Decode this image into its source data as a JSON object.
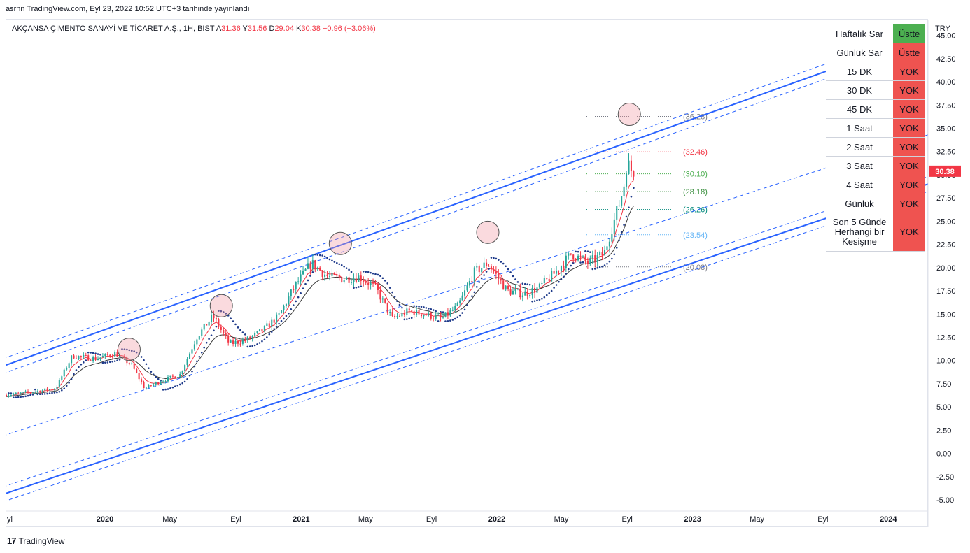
{
  "header": {
    "published": "asrnn TradingView.com, Eyl 23, 2022 10:52 UTC+3 tarihinde yayınlandı"
  },
  "legend": {
    "symbol": "AKÇANSA ÇİMENTO SANAYİ VE TİCARET A.Ş., 1H, BIST",
    "open_label": "A",
    "open": "31.36",
    "high_label": "Y",
    "high": "31.56",
    "low_label": "D",
    "low": "29.04",
    "close_label": "K",
    "close": "30.38",
    "change": "−0.96 (−3.06%)"
  },
  "footer": {
    "logo": "17",
    "brand": "TradingView"
  },
  "colors": {
    "up": "#26a69a",
    "down": "#f23645",
    "channel": "#2962ff",
    "ema_fast": "#f23645",
    "ema_slow": "#3a3a3a",
    "sar": "#1e3a8a",
    "green_cell": "#4caf50",
    "red_cell": "#ef5350"
  },
  "status_table": [
    {
      "label": "Haftalık Sar",
      "value": "Üstte",
      "state": "green"
    },
    {
      "label": "Günlük Sar",
      "value": "Üstte",
      "state": "red"
    },
    {
      "label": "15 DK",
      "value": "YOK",
      "state": "red"
    },
    {
      "label": "30 DK",
      "value": "YOK",
      "state": "red"
    },
    {
      "label": "45 DK",
      "value": "YOK",
      "state": "red"
    },
    {
      "label": "1 Saat",
      "value": "YOK",
      "state": "red"
    },
    {
      "label": "2 Saat",
      "value": "YOK",
      "state": "red"
    },
    {
      "label": "3 Saat",
      "value": "YOK",
      "state": "red"
    },
    {
      "label": "4 Saat",
      "value": "YOK",
      "state": "red"
    },
    {
      "label": "Günlük",
      "value": "YOK",
      "state": "red"
    },
    {
      "label": "Son 5 Günde Herhangi bir Kesişme",
      "value": "YOK",
      "state": "red"
    }
  ],
  "chart_data": {
    "type": "candlestick",
    "currency": "TRY",
    "y_axis": {
      "range": [
        -6.2,
        46.7
      ],
      "ticks": [
        "45.00",
        "42.50",
        "40.00",
        "37.50",
        "35.00",
        "32.50",
        "30.00",
        "27.50",
        "25.00",
        "22.50",
        "20.00",
        "17.50",
        "15.00",
        "12.50",
        "10.00",
        "7.50",
        "5.00",
        "2.50",
        "0.00",
        "-2.50",
        "-5.00"
      ]
    },
    "x_axis": {
      "range": [
        "2019-07-01",
        "2024-03-15"
      ],
      "ticks": [
        {
          "label": "yl",
          "date": "2019-07-01"
        },
        {
          "label": "2020",
          "date": "2020-01-01"
        },
        {
          "label": "May",
          "date": "2020-05-01"
        },
        {
          "label": "Eyl",
          "date": "2020-09-01"
        },
        {
          "label": "2021",
          "date": "2021-01-01"
        },
        {
          "label": "May",
          "date": "2021-05-01"
        },
        {
          "label": "Eyl",
          "date": "2021-09-01"
        },
        {
          "label": "2022",
          "date": "2022-01-01"
        },
        {
          "label": "May",
          "date": "2022-05-01"
        },
        {
          "label": "Eyl",
          "date": "2022-09-01"
        },
        {
          "label": "2023",
          "date": "2023-01-01"
        },
        {
          "label": "May",
          "date": "2023-05-01"
        },
        {
          "label": "Eyl",
          "date": "2023-09-01"
        },
        {
          "label": "2024",
          "date": "2024-01-01"
        }
      ]
    },
    "last_price": "30.38",
    "price_levels": [
      {
        "label": "(36.28)",
        "value": 36.28,
        "color": "#787b86"
      },
      {
        "label": "(32.46)",
        "value": 32.46,
        "color": "#f23645"
      },
      {
        "label": "(30.10)",
        "value": 30.1,
        "color": "#4caf50"
      },
      {
        "label": "(28.18)",
        "value": 28.18,
        "color": "#388e3c"
      },
      {
        "label": "(26.26)",
        "value": 26.26,
        "color": "#00897b"
      },
      {
        "label": "(23.54)",
        "value": 23.54,
        "color": "#64b5f6"
      },
      {
        "label": "(20.08)",
        "value": 20.08,
        "color": "#787b86"
      }
    ],
    "channel": {
      "upper": [
        [
          "2019-06-25",
          9.4
        ],
        [
          "2023-12-01",
          42.9
        ]
      ],
      "middle": [
        [
          "2019-06-25",
          1.9
        ],
        [
          "2024-03-15",
          34.3
        ]
      ],
      "lower": [
        [
          "2019-06-25",
          -4.4
        ],
        [
          "2024-03-15",
          29.0
        ]
      ],
      "offset": 0.8
    },
    "circled_peaks": [
      {
        "date": "2020-02-15",
        "price": 11.2
      },
      {
        "date": "2020-08-05",
        "price": 15.9
      },
      {
        "date": "2021-03-15",
        "price": 22.6
      },
      {
        "date": "2021-12-15",
        "price": 23.8
      },
      {
        "date": "2022-09-05",
        "price": 36.5
      }
    ],
    "price_path": [
      [
        "2019-07-01",
        6.3
      ],
      [
        "2019-08-15",
        6.6
      ],
      [
        "2019-10-01",
        7.0
      ],
      [
        "2019-11-01",
        10.5
      ],
      [
        "2019-12-15",
        10.2
      ],
      [
        "2020-01-20",
        10.8
      ],
      [
        "2020-02-20",
        9.5
      ],
      [
        "2020-03-15",
        7.0
      ],
      [
        "2020-04-15",
        7.8
      ],
      [
        "2020-05-20",
        8.5
      ],
      [
        "2020-06-20",
        12.5
      ],
      [
        "2020-07-20",
        14.8
      ],
      [
        "2020-08-20",
        11.8
      ],
      [
        "2020-09-20",
        12.2
      ],
      [
        "2020-10-20",
        13.2
      ],
      [
        "2020-11-20",
        14.8
      ],
      [
        "2020-12-20",
        18.0
      ],
      [
        "2021-01-20",
        20.5
      ],
      [
        "2021-02-20",
        19.0
      ],
      [
        "2021-03-20",
        18.8
      ],
      [
        "2021-04-20",
        19.0
      ],
      [
        "2021-05-20",
        17.8
      ],
      [
        "2021-06-20",
        14.5
      ],
      [
        "2021-07-20",
        15.3
      ],
      [
        "2021-08-20",
        15.0
      ],
      [
        "2021-09-20",
        14.5
      ],
      [
        "2021-10-20",
        15.8
      ],
      [
        "2021-11-20",
        19.5
      ],
      [
        "2021-12-15",
        20.5
      ],
      [
        "2022-01-20",
        17.5
      ],
      [
        "2022-02-20",
        17.2
      ],
      [
        "2022-03-20",
        17.8
      ],
      [
        "2022-04-20",
        19.5
      ],
      [
        "2022-05-20",
        21.5
      ],
      [
        "2022-06-20",
        20.5
      ],
      [
        "2022-07-20",
        21.5
      ],
      [
        "2022-08-10",
        25.5
      ],
      [
        "2022-08-25",
        28.5
      ],
      [
        "2022-09-02",
        32.0
      ],
      [
        "2022-09-05",
        30.5
      ],
      [
        "2022-09-15",
        30.4
      ]
    ]
  }
}
